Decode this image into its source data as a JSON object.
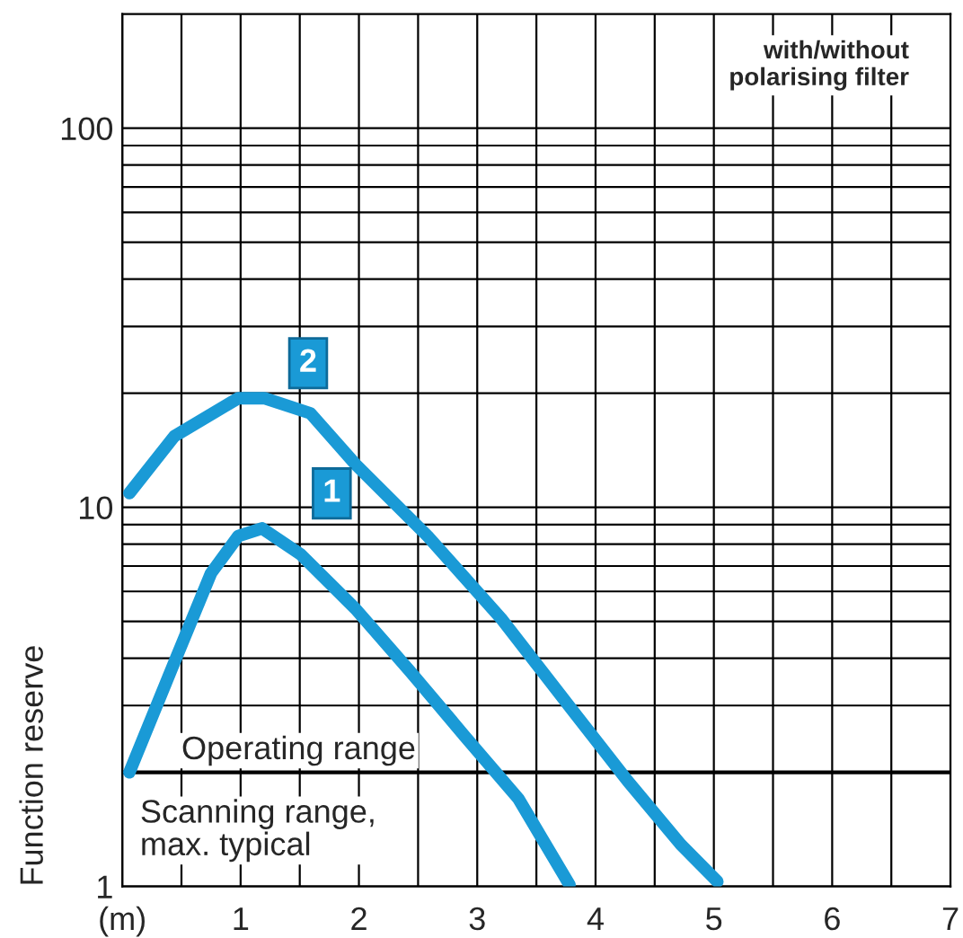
{
  "chart_data": {
    "type": "line",
    "ylabel": "Function reserve",
    "log": true,
    "grid": true,
    "line_style": "solid",
    "marker": "none",
    "xlim": [
      0,
      7
    ],
    "ylim": [
      1,
      200
    ],
    "xticks": [
      {
        "value": 0,
        "label": "(m)"
      },
      {
        "value": 0.5,
        "label": null
      },
      1,
      {
        "value": 1.5,
        "label": null
      },
      2,
      {
        "value": 2.5,
        "label": null
      },
      3,
      {
        "value": 3.5,
        "label": null
      },
      4,
      {
        "value": 4.5,
        "label": null
      },
      5,
      {
        "value": 5.5,
        "label": null
      },
      6,
      {
        "value": 6.5,
        "label": null
      },
      7
    ],
    "yticks": [
      1,
      {
        "value": 2,
        "label": null
      },
      {
        "value": 3,
        "label": null
      },
      {
        "value": 4,
        "label": null
      },
      {
        "value": 5,
        "label": null
      },
      {
        "value": 6,
        "label": null
      },
      {
        "value": 7,
        "label": null
      },
      {
        "value": 8,
        "label": null
      },
      {
        "value": 9,
        "label": null
      },
      10,
      {
        "value": 20,
        "label": null
      },
      {
        "value": 30,
        "label": null
      },
      {
        "value": 40,
        "label": null
      },
      {
        "value": 50,
        "label": null
      },
      {
        "value": 60,
        "label": null
      },
      {
        "value": 70,
        "label": null
      },
      {
        "value": 80,
        "label": null
      },
      {
        "value": 90,
        "label": null
      },
      100
    ],
    "series": [
      {
        "name": "1",
        "color": "#1a9ad6",
        "x": [
          0.06,
          0.44,
          0.75,
          0.98,
          1.18,
          1.51,
          1.97,
          2.43,
          2.89,
          3.35,
          3.78
        ],
        "values": [
          2.0,
          3.9,
          6.7,
          8.4,
          8.8,
          7.5,
          5.4,
          3.7,
          2.5,
          1.7,
          1.01
        ]
      },
      {
        "name": "2",
        "color": "#1a9ad6",
        "x": [
          0.06,
          0.44,
          0.98,
          1.2,
          1.59,
          1.97,
          2.58,
          3.2,
          3.81,
          4.27,
          4.72,
          5.03
        ],
        "values": [
          10.9,
          15.4,
          19.4,
          19.4,
          17.7,
          13.0,
          8.4,
          5.1,
          2.9,
          1.9,
          1.29,
          1.03
        ]
      }
    ],
    "ref_lines": [
      {
        "axis": "y",
        "value": 2,
        "label": "Operating range",
        "color": "#000000"
      }
    ],
    "annotations": [
      "Scanning range, max. typical",
      "with/without polarising filter"
    ]
  }
}
